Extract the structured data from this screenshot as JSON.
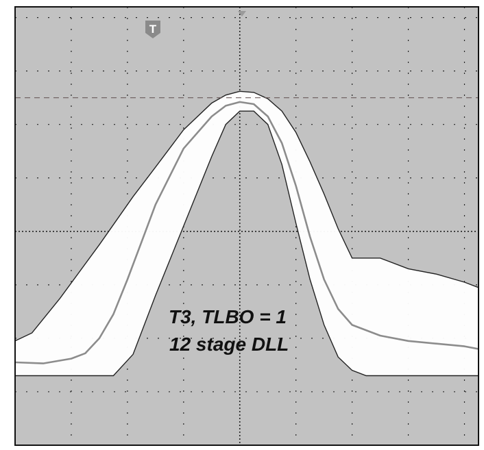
{
  "chart_data": {
    "type": "line",
    "title": "",
    "xlabel": "",
    "ylabel": "",
    "grid": true,
    "xlim": [
      -4,
      4.25
    ],
    "ylim": [
      -4,
      4.2
    ],
    "annotation": [
      "T3, TLBO = 1",
      "12 stage DLL"
    ],
    "trigger_marker": "T",
    "reference_level": 2.5,
    "mask_upper": {
      "x": [
        -4,
        -3.7,
        -3.2,
        -2.5,
        -1.9,
        -1.5,
        -1,
        -0.5,
        -0.25,
        0,
        0.25,
        0.5,
        0.75,
        1,
        1.25,
        1.5,
        1.75,
        2,
        2.5,
        3,
        3.5,
        4,
        4.25
      ],
      "y": [
        -2.05,
        -1.9,
        -1.25,
        -0.25,
        0.65,
        1.2,
        1.9,
        2.4,
        2.55,
        2.62,
        2.6,
        2.48,
        2.25,
        1.85,
        1.3,
        0.7,
        0.05,
        -0.5,
        -0.5,
        -0.7,
        -0.8,
        -0.95,
        -1.05
      ]
    },
    "mask_lower": {
      "x": [
        -4,
        -2.25,
        -1.9,
        -1.5,
        -1,
        -0.5,
        -0.25,
        0,
        0.25,
        0.5,
        0.75,
        1,
        1.25,
        1.5,
        1.75,
        2,
        2.25,
        2.5,
        4.25
      ],
      "y": [
        -2.7,
        -2.7,
        -2.3,
        -1.2,
        0.1,
        1.4,
        2.0,
        2.25,
        2.25,
        2.0,
        1.25,
        0.15,
        -0.9,
        -1.75,
        -2.35,
        -2.6,
        -2.7,
        -2.7,
        -2.7
      ]
    },
    "series": [
      {
        "x": [
          -4,
          -3.5,
          -3,
          -2.75,
          -2.5,
          -2.25,
          -2,
          -1.75,
          -1.5,
          -1,
          -0.5,
          -0.25,
          0,
          0.25,
          0.5,
          0.75,
          1,
          1.25,
          1.5,
          1.75,
          2,
          2.5,
          3,
          3.5,
          4,
          4.25
        ],
        "y": [
          -2.45,
          -2.47,
          -2.38,
          -2.28,
          -2.0,
          -1.55,
          -0.9,
          -0.2,
          0.5,
          1.55,
          2.15,
          2.35,
          2.42,
          2.38,
          2.15,
          1.65,
          0.85,
          -0.1,
          -0.9,
          -1.45,
          -1.75,
          -1.95,
          -2.05,
          -2.1,
          -2.15,
          -2.2
        ]
      }
    ]
  }
}
